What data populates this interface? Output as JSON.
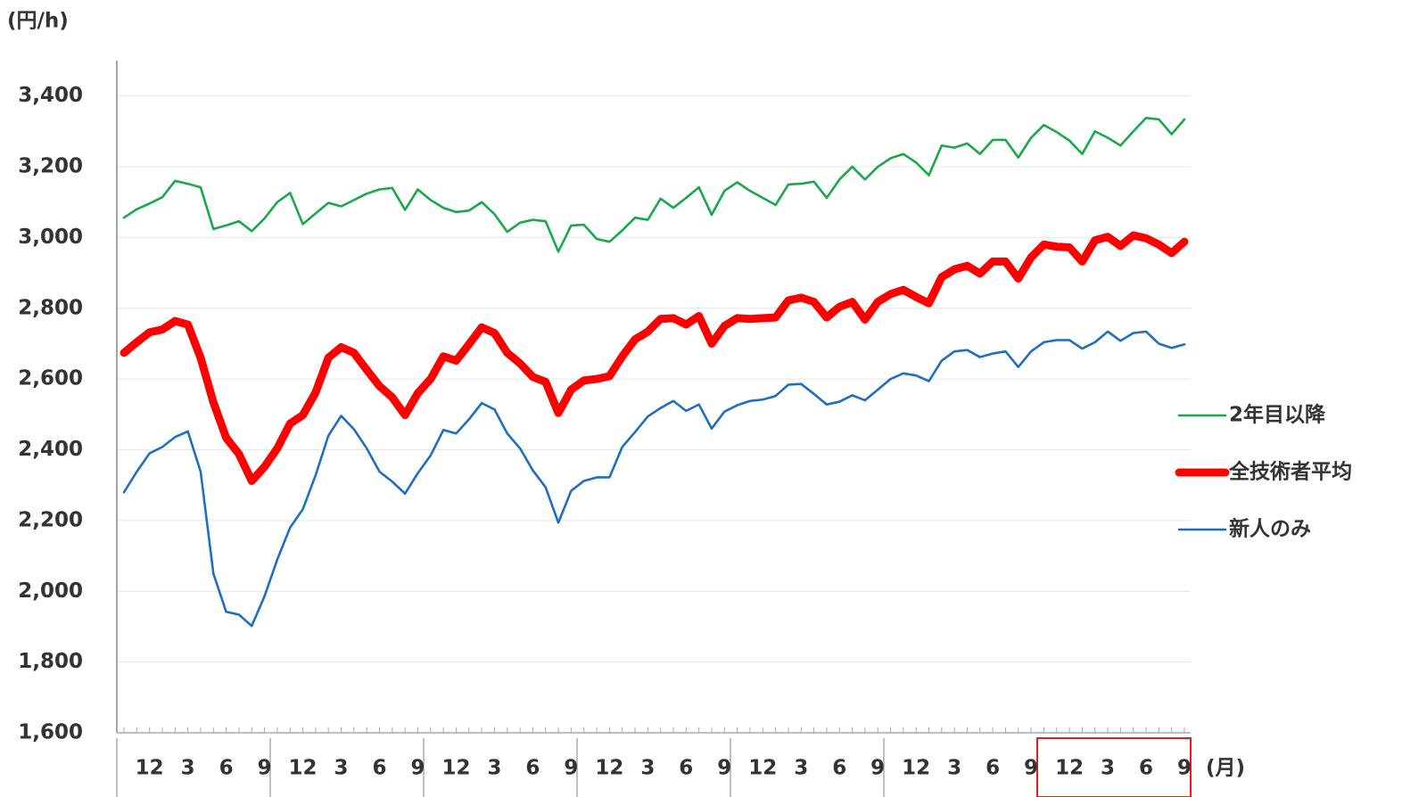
{
  "chart_data": {
    "type": "line",
    "y_label": "(円/h)",
    "x_label": "(月)",
    "categories": [
      null,
      null,
      "12",
      null,
      null,
      "3",
      null,
      null,
      "6",
      null,
      null,
      "9",
      null,
      null,
      "12",
      null,
      null,
      "3",
      null,
      null,
      "6",
      null,
      null,
      "9",
      null,
      null,
      "12",
      null,
      null,
      "3",
      null,
      null,
      "6",
      null,
      null,
      "9",
      null,
      null,
      "12",
      null,
      null,
      "3",
      null,
      null,
      "6",
      null,
      null,
      "9",
      null,
      null,
      "12",
      null,
      null,
      "3",
      null,
      null,
      "6",
      null,
      null,
      "9",
      null,
      null,
      "12",
      null,
      null,
      "3",
      null,
      null,
      "6",
      null,
      null,
      "9",
      null,
      null,
      "12",
      null,
      null,
      "3",
      null,
      null,
      "6",
      null,
      null,
      "9"
    ],
    "series": [
      {
        "name": "2年目以降",
        "color": "#1aa84a",
        "values": [
          3056,
          3080,
          3096,
          3114,
          3160,
          3152,
          3142,
          3024,
          3034,
          3046,
          3018,
          3054,
          3100,
          3126,
          3038,
          3068,
          3098,
          3088,
          3106,
          3124,
          3136,
          3140,
          3078,
          3136,
          3106,
          3084,
          3072,
          3076,
          3100,
          3066,
          3016,
          3042,
          3050,
          3046,
          2960,
          3034,
          3036,
          2996,
          2988,
          3020,
          3056,
          3050,
          3110,
          3084,
          3112,
          3142,
          3064,
          3132,
          3156,
          3132,
          3112,
          3092,
          3150,
          3152,
          3158,
          3112,
          3164,
          3200,
          3164,
          3200,
          3224,
          3236,
          3212,
          3176,
          3260,
          3254,
          3266,
          3236,
          3276,
          3276,
          3226,
          3282,
          3318,
          3298,
          3274,
          3236,
          3300,
          3282,
          3260,
          3300,
          3338,
          3334,
          3292,
          3334
        ]
      },
      {
        "name": "全技術者平均",
        "color": "#ff0000",
        "values": [
          2674,
          2704,
          2732,
          2740,
          2764,
          2754,
          2660,
          2534,
          2434,
          2388,
          2312,
          2352,
          2404,
          2474,
          2498,
          2562,
          2660,
          2690,
          2674,
          2626,
          2580,
          2548,
          2498,
          2560,
          2600,
          2664,
          2652,
          2698,
          2746,
          2730,
          2674,
          2644,
          2606,
          2592,
          2504,
          2570,
          2596,
          2600,
          2608,
          2664,
          2712,
          2734,
          2770,
          2772,
          2754,
          2778,
          2700,
          2750,
          2772,
          2770,
          2772,
          2774,
          2822,
          2830,
          2818,
          2774,
          2804,
          2818,
          2768,
          2818,
          2840,
          2852,
          2832,
          2814,
          2888,
          2910,
          2920,
          2898,
          2932,
          2932,
          2884,
          2944,
          2980,
          2974,
          2972,
          2932,
          2992,
          3002,
          2976,
          3006,
          2998,
          2980,
          2956,
          2988
        ]
      },
      {
        "name": "新人のみ",
        "color": "#1f6fbf",
        "values": [
          2280,
          2338,
          2390,
          2408,
          2436,
          2452,
          2338,
          2050,
          1942,
          1934,
          1902,
          1986,
          2090,
          2180,
          2232,
          2328,
          2440,
          2496,
          2458,
          2404,
          2338,
          2310,
          2276,
          2334,
          2384,
          2456,
          2446,
          2486,
          2532,
          2514,
          2446,
          2404,
          2342,
          2294,
          2194,
          2284,
          2312,
          2322,
          2322,
          2408,
          2450,
          2494,
          2518,
          2538,
          2510,
          2528,
          2460,
          2508,
          2526,
          2538,
          2542,
          2552,
          2584,
          2586,
          2558,
          2528,
          2536,
          2554,
          2540,
          2570,
          2600,
          2616,
          2610,
          2594,
          2652,
          2678,
          2682,
          2662,
          2672,
          2678,
          2634,
          2678,
          2704,
          2710,
          2710,
          2686,
          2704,
          2734,
          2708,
          2730,
          2734,
          2700,
          2688,
          2698
        ]
      }
    ],
    "ylim": [
      1600,
      3500
    ],
    "yticks": [
      {
        "value": 1600,
        "label": "1,600"
      },
      {
        "value": 1800,
        "label": "1,800"
      },
      {
        "value": 2000,
        "label": "2,000"
      },
      {
        "value": 2200,
        "label": "2,200"
      },
      {
        "value": 2400,
        "label": "2,400"
      },
      {
        "value": 2600,
        "label": "2,600"
      },
      {
        "value": 2800,
        "label": "2,800"
      },
      {
        "value": 3000,
        "label": "3,000"
      },
      {
        "value": 3200,
        "label": "3,200"
      },
      {
        "value": 3400,
        "label": "3,400"
      }
    ],
    "grid": true,
    "legend": "right"
  }
}
